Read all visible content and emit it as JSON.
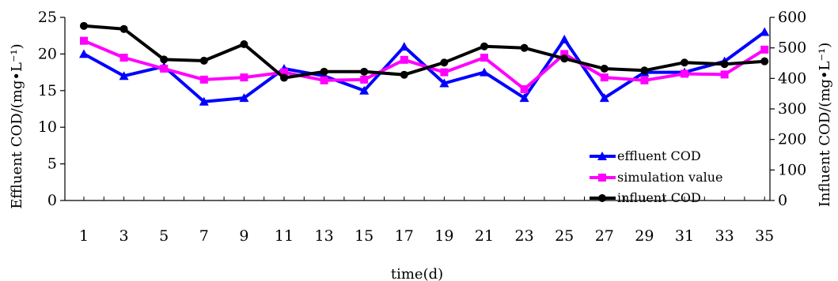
{
  "chart_data": {
    "type": "line",
    "x": [
      1,
      3,
      5,
      7,
      9,
      11,
      13,
      15,
      17,
      19,
      21,
      23,
      25,
      27,
      29,
      31,
      33,
      35
    ],
    "x_ticks": [
      "1",
      "3",
      "5",
      "7",
      "9",
      "11",
      "13",
      "15",
      "17",
      "19",
      "21",
      "23",
      "25",
      "27",
      "29",
      "31",
      "33",
      "35"
    ],
    "xlabel": "time(d)",
    "ylabel_left": "Effluent COD/(mg•L⁻¹)",
    "ylabel_right": "Influent COD/(mg•L⁻¹)",
    "ylim_left": [
      0,
      25
    ],
    "yticks_left": [
      "0",
      "5",
      "10",
      "15",
      "20",
      "25"
    ],
    "ylim_right": [
      0,
      600
    ],
    "yticks_right": [
      "0",
      "100",
      "200",
      "300",
      "400",
      "500",
      "600"
    ],
    "grid": false,
    "legend_position": "bottom-right",
    "series": [
      {
        "name": "effluent COD",
        "axis": "left",
        "color": "#0000ff",
        "marker": "triangle",
        "values": [
          20.0,
          17.0,
          18.3,
          13.5,
          14.0,
          18.0,
          17.0,
          15.0,
          21.0,
          16.0,
          17.5,
          14.0,
          22.0,
          14.0,
          17.5,
          17.5,
          19.0,
          23.0
        ]
      },
      {
        "name": "simulation value",
        "axis": "left",
        "color": "#ff00ff",
        "marker": "square",
        "values": [
          21.8,
          19.5,
          18.0,
          16.5,
          16.8,
          17.5,
          16.4,
          16.5,
          19.2,
          17.5,
          19.5,
          15.2,
          20.0,
          16.8,
          16.4,
          17.3,
          17.2,
          20.6
        ]
      },
      {
        "name": "influent COD",
        "axis": "right",
        "color": "#000000",
        "marker": "circle",
        "values": [
          572,
          562,
          462,
          458,
          512,
          402,
          422,
          422,
          412,
          452,
          505,
          500,
          465,
          432,
          426,
          452,
          447,
          456
        ]
      }
    ]
  }
}
